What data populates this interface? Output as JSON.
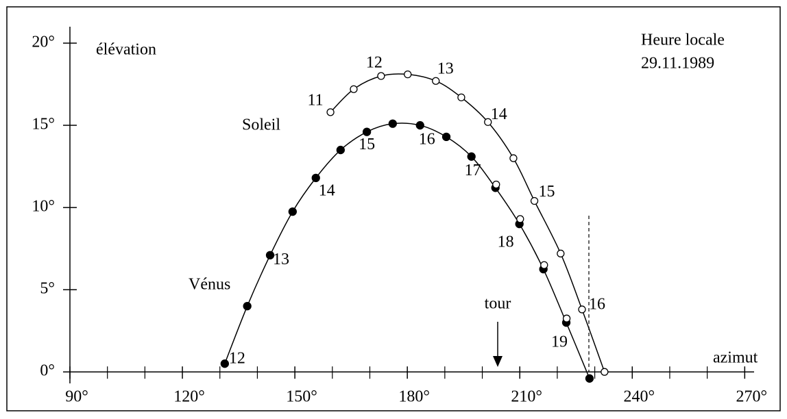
{
  "chart_data": {
    "type": "line",
    "ylabel": "élévation",
    "xlabel": "azimut",
    "legend_title": "Heure locale",
    "date": "29.11.1989",
    "annotation": "tour",
    "series": [
      {
        "name": "Soleil",
        "color": "#000000",
        "marker": "open",
        "x": [
          159.5,
          165.7,
          173.0,
          180.1,
          187.6,
          194.4,
          201.5,
          208.3,
          213.9,
          220.9,
          226.6,
          232.6
        ],
        "values": [
          15.8,
          17.2,
          18.0,
          18.1,
          17.7,
          16.7,
          15.2,
          13.0,
          10.4,
          7.2,
          3.8,
          0
        ],
        "hour_labels": [
          {
            "index": 0,
            "text": "11"
          },
          {
            "index": 2,
            "text": "12"
          },
          {
            "index": 4,
            "text": "13"
          },
          {
            "index": 6,
            "text": "14"
          },
          {
            "index": 8,
            "text": "15"
          },
          {
            "index": 10,
            "text": "16"
          }
        ]
      },
      {
        "name": "Vénus",
        "color": "#000000",
        "marker": "filled",
        "x": [
          131.3,
          137.3,
          143.4,
          149.4,
          155.6,
          162.2,
          169.2,
          176.1,
          183.4,
          190.4,
          197.1,
          203.5,
          209.9,
          216.3,
          222.4,
          228.6
        ],
        "values": [
          0.5,
          4.0,
          7.1,
          9.75,
          11.8,
          13.5,
          14.6,
          15.1,
          15.0,
          14.3,
          13.1,
          11.2,
          9.0,
          6.25,
          3.0,
          -0.4
        ],
        "hour_labels": [
          {
            "index": 0,
            "text": "12"
          },
          {
            "index": 2,
            "text": "13"
          },
          {
            "index": 4,
            "text": "14"
          },
          {
            "index": 6,
            "text": "15"
          },
          {
            "index": 8,
            "text": "16"
          },
          {
            "index": 10,
            "text": "17"
          },
          {
            "index": 12,
            "text": "18"
          },
          {
            "index": 14,
            "text": "19"
          }
        ]
      },
      {
        "color": "#000000",
        "marker": "open",
        "x": [
          203.7,
          210.1,
          216.5,
          222.5
        ],
        "values": [
          11.4,
          9.3,
          6.5,
          3.25
        ]
      }
    ],
    "xlim": [
      90,
      272.5
    ],
    "ylim": [
      -0.7,
      21
    ],
    "xticks": [
      {
        "value": 90,
        "label": "90°"
      },
      {
        "value": 120,
        "label": "120°"
      },
      {
        "value": 150,
        "label": "150°"
      },
      {
        "value": 180,
        "label": "180°"
      },
      {
        "value": 210,
        "label": "210°"
      },
      {
        "value": 240,
        "label": "240°"
      },
      {
        "value": 270,
        "label": "270°"
      }
    ],
    "xminorticks": [
      100,
      110,
      130,
      140,
      160,
      170,
      190,
      200,
      220,
      230,
      250,
      260
    ],
    "yticks": [
      {
        "value": 0,
        "label": "0°"
      },
      {
        "value": 5,
        "label": "5°"
      },
      {
        "value": 10,
        "label": "10°"
      },
      {
        "value": 15,
        "label": "15°"
      },
      {
        "value": 20,
        "label": "20°"
      }
    ]
  }
}
